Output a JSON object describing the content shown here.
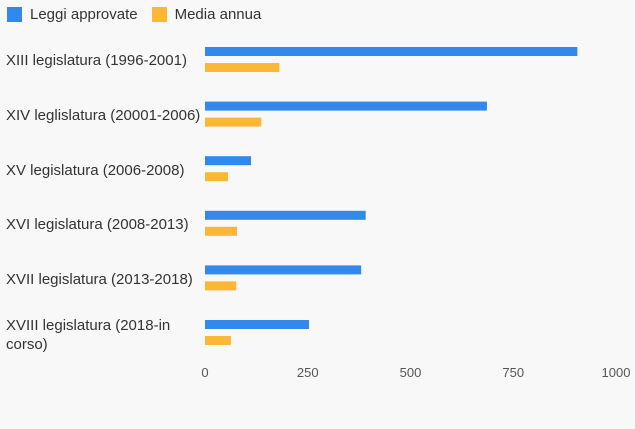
{
  "colors": {
    "leggi": "#3388ee",
    "media": "#fbb735"
  },
  "chart_data": {
    "type": "bar",
    "orientation": "horizontal",
    "categories": [
      "XIII legislatura (1996-2001)",
      "XIV leglislatura (20001-2006)",
      "XV legislatura (2006-2008)",
      "XVI legislatura (2008-2013)",
      "XVII legislatura (2013-2018)",
      "XVIII legislatura (2018-in corso)"
    ],
    "series": [
      {
        "name": "Leggi approvate",
        "values": [
          906,
          686,
          112,
          391,
          380,
          253
        ]
      },
      {
        "name": "Media annua",
        "values": [
          181,
          137,
          56,
          78,
          76,
          63
        ]
      }
    ],
    "xlim": [
      0,
      1000
    ],
    "xticks": [
      "0",
      "250",
      "500",
      "750",
      "1000"
    ],
    "legend_position": "top-left",
    "grid": false
  }
}
